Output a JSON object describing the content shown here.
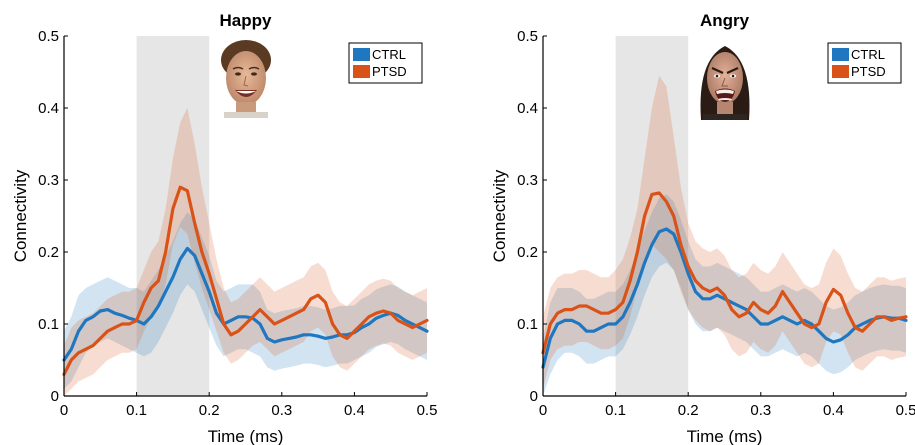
{
  "chart_data": [
    {
      "type": "line",
      "title": "Happy",
      "xlabel": "Time (ms)",
      "ylabel": "Connectivity",
      "xlim": [
        0,
        0.5
      ],
      "ylim": [
        0,
        0.5
      ],
      "xticks": [
        0,
        0.1,
        0.2,
        0.3,
        0.4,
        0.5
      ],
      "xtick_labels": [
        "0",
        "0.1",
        "0.2",
        "0.3",
        "0.4",
        "0.5"
      ],
      "yticks": [
        0,
        0.1,
        0.2,
        0.3,
        0.4,
        0.5
      ],
      "ytick_labels": [
        "0",
        "0.1",
        "0.2",
        "0.3",
        "0.4",
        "0.5"
      ],
      "highlight_window": [
        0.1,
        0.2
      ],
      "grid": false,
      "legend_placement": "top-right",
      "face_image": "happy-face",
      "series": [
        {
          "name": "CTRL",
          "color": "#1f77c0",
          "x": [
            0,
            0.01,
            0.02,
            0.03,
            0.04,
            0.05,
            0.06,
            0.07,
            0.08,
            0.09,
            0.1,
            0.11,
            0.12,
            0.13,
            0.14,
            0.15,
            0.16,
            0.17,
            0.18,
            0.19,
            0.2,
            0.21,
            0.22,
            0.23,
            0.24,
            0.25,
            0.26,
            0.27,
            0.28,
            0.29,
            0.3,
            0.31,
            0.32,
            0.33,
            0.34,
            0.35,
            0.36,
            0.37,
            0.38,
            0.39,
            0.4,
            0.41,
            0.42,
            0.43,
            0.44,
            0.45,
            0.46,
            0.47,
            0.48,
            0.49,
            0.5
          ],
          "y": [
            0.05,
            0.065,
            0.09,
            0.105,
            0.11,
            0.118,
            0.12,
            0.115,
            0.112,
            0.108,
            0.105,
            0.1,
            0.11,
            0.125,
            0.145,
            0.165,
            0.19,
            0.205,
            0.195,
            0.17,
            0.145,
            0.115,
            0.1,
            0.105,
            0.11,
            0.11,
            0.108,
            0.1,
            0.08,
            0.075,
            0.078,
            0.08,
            0.082,
            0.085,
            0.085,
            0.083,
            0.08,
            0.082,
            0.085,
            0.085,
            0.088,
            0.095,
            0.1,
            0.108,
            0.112,
            0.115,
            0.112,
            0.105,
            0.1,
            0.095,
            0.09
          ],
          "lower": [
            0.01,
            0.02,
            0.04,
            0.06,
            0.07,
            0.075,
            0.08,
            0.075,
            0.07,
            0.065,
            0.06,
            0.055,
            0.06,
            0.075,
            0.095,
            0.115,
            0.14,
            0.155,
            0.145,
            0.12,
            0.095,
            0.07,
            0.055,
            0.06,
            0.065,
            0.065,
            0.06,
            0.055,
            0.04,
            0.035,
            0.038,
            0.04,
            0.042,
            0.045,
            0.045,
            0.043,
            0.04,
            0.042,
            0.045,
            0.045,
            0.05,
            0.055,
            0.06,
            0.068,
            0.072,
            0.075,
            0.072,
            0.065,
            0.06,
            0.055,
            0.05
          ],
          "upper": [
            0.09,
            0.11,
            0.14,
            0.15,
            0.155,
            0.16,
            0.165,
            0.16,
            0.155,
            0.15,
            0.15,
            0.145,
            0.16,
            0.175,
            0.195,
            0.215,
            0.24,
            0.255,
            0.245,
            0.22,
            0.195,
            0.16,
            0.145,
            0.15,
            0.155,
            0.155,
            0.155,
            0.145,
            0.12,
            0.115,
            0.118,
            0.12,
            0.122,
            0.125,
            0.125,
            0.123,
            0.12,
            0.122,
            0.125,
            0.125,
            0.126,
            0.135,
            0.14,
            0.148,
            0.152,
            0.155,
            0.152,
            0.145,
            0.14,
            0.135,
            0.13
          ]
        },
        {
          "name": "PTSD",
          "color": "#d95319",
          "x": [
            0,
            0.01,
            0.02,
            0.03,
            0.04,
            0.05,
            0.06,
            0.07,
            0.08,
            0.09,
            0.1,
            0.11,
            0.12,
            0.13,
            0.14,
            0.15,
            0.16,
            0.17,
            0.18,
            0.19,
            0.2,
            0.21,
            0.22,
            0.23,
            0.24,
            0.25,
            0.26,
            0.27,
            0.28,
            0.29,
            0.3,
            0.31,
            0.32,
            0.33,
            0.34,
            0.35,
            0.36,
            0.37,
            0.38,
            0.39,
            0.4,
            0.41,
            0.42,
            0.43,
            0.44,
            0.45,
            0.46,
            0.47,
            0.48,
            0.49,
            0.5
          ],
          "y": [
            0.03,
            0.05,
            0.06,
            0.065,
            0.07,
            0.08,
            0.09,
            0.095,
            0.1,
            0.1,
            0.105,
            0.13,
            0.15,
            0.16,
            0.2,
            0.26,
            0.29,
            0.285,
            0.24,
            0.2,
            0.17,
            0.135,
            0.1,
            0.085,
            0.09,
            0.1,
            0.11,
            0.12,
            0.11,
            0.1,
            0.105,
            0.11,
            0.115,
            0.12,
            0.135,
            0.14,
            0.13,
            0.1,
            0.085,
            0.08,
            0.09,
            0.1,
            0.11,
            0.115,
            0.118,
            0.115,
            0.105,
            0.1,
            0.095,
            0.1,
            0.105
          ],
          "lower": [
            0.0,
            0.01,
            0.02,
            0.025,
            0.03,
            0.04,
            0.05,
            0.055,
            0.06,
            0.06,
            0.065,
            0.09,
            0.11,
            0.12,
            0.155,
            0.21,
            0.235,
            0.225,
            0.185,
            0.15,
            0.12,
            0.09,
            0.06,
            0.045,
            0.05,
            0.06,
            0.07,
            0.075,
            0.065,
            0.055,
            0.06,
            0.065,
            0.07,
            0.075,
            0.09,
            0.095,
            0.085,
            0.055,
            0.04,
            0.035,
            0.045,
            0.055,
            0.065,
            0.07,
            0.073,
            0.07,
            0.06,
            0.055,
            0.05,
            0.055,
            0.06
          ],
          "upper": [
            0.07,
            0.095,
            0.105,
            0.11,
            0.115,
            0.125,
            0.135,
            0.14,
            0.145,
            0.145,
            0.15,
            0.175,
            0.2,
            0.215,
            0.26,
            0.33,
            0.38,
            0.4,
            0.35,
            0.29,
            0.24,
            0.19,
            0.15,
            0.13,
            0.135,
            0.145,
            0.155,
            0.165,
            0.155,
            0.145,
            0.15,
            0.155,
            0.16,
            0.165,
            0.18,
            0.185,
            0.175,
            0.145,
            0.13,
            0.125,
            0.135,
            0.145,
            0.155,
            0.16,
            0.163,
            0.16,
            0.15,
            0.145,
            0.14,
            0.145,
            0.15
          ]
        }
      ]
    },
    {
      "type": "line",
      "title": "Angry",
      "xlabel": "Time (ms)",
      "ylabel": "Connectivity",
      "xlim": [
        0,
        0.5
      ],
      "ylim": [
        0,
        0.5
      ],
      "xticks": [
        0,
        0.1,
        0.2,
        0.3,
        0.4,
        0.5
      ],
      "xtick_labels": [
        "0",
        "0.1",
        "0.2",
        "0.3",
        "0.4",
        "0.5"
      ],
      "yticks": [
        0,
        0.1,
        0.2,
        0.3,
        0.4,
        0.5
      ],
      "ytick_labels": [
        "0",
        "0.1",
        "0.2",
        "0.3",
        "0.4",
        "0.5"
      ],
      "highlight_window": [
        0.1,
        0.2
      ],
      "grid": false,
      "legend_placement": "top-right",
      "face_image": "angry-face",
      "series": [
        {
          "name": "CTRL",
          "color": "#1f77c0",
          "x": [
            0,
            0.01,
            0.02,
            0.03,
            0.04,
            0.05,
            0.06,
            0.07,
            0.08,
            0.09,
            0.1,
            0.11,
            0.12,
            0.13,
            0.14,
            0.15,
            0.16,
            0.17,
            0.18,
            0.19,
            0.2,
            0.21,
            0.22,
            0.23,
            0.24,
            0.25,
            0.26,
            0.27,
            0.28,
            0.29,
            0.3,
            0.31,
            0.32,
            0.33,
            0.34,
            0.35,
            0.36,
            0.37,
            0.38,
            0.39,
            0.4,
            0.41,
            0.42,
            0.43,
            0.44,
            0.45,
            0.46,
            0.47,
            0.48,
            0.49,
            0.5
          ],
          "y": [
            0.04,
            0.08,
            0.1,
            0.105,
            0.105,
            0.1,
            0.09,
            0.09,
            0.095,
            0.1,
            0.1,
            0.11,
            0.13,
            0.155,
            0.185,
            0.21,
            0.228,
            0.232,
            0.225,
            0.2,
            0.17,
            0.145,
            0.135,
            0.135,
            0.14,
            0.135,
            0.13,
            0.125,
            0.12,
            0.11,
            0.1,
            0.1,
            0.105,
            0.11,
            0.105,
            0.1,
            0.105,
            0.1,
            0.09,
            0.08,
            0.075,
            0.078,
            0.085,
            0.095,
            0.1,
            0.105,
            0.108,
            0.11,
            0.108,
            0.108,
            0.105
          ],
          "lower": [
            0.0,
            0.03,
            0.05,
            0.06,
            0.06,
            0.055,
            0.045,
            0.045,
            0.05,
            0.055,
            0.055,
            0.065,
            0.085,
            0.11,
            0.14,
            0.165,
            0.18,
            0.185,
            0.175,
            0.15,
            0.12,
            0.1,
            0.09,
            0.09,
            0.095,
            0.09,
            0.085,
            0.08,
            0.075,
            0.065,
            0.055,
            0.055,
            0.06,
            0.065,
            0.06,
            0.055,
            0.06,
            0.055,
            0.045,
            0.035,
            0.03,
            0.033,
            0.04,
            0.05,
            0.055,
            0.06,
            0.063,
            0.065,
            0.063,
            0.063,
            0.06
          ],
          "upper": [
            0.08,
            0.13,
            0.15,
            0.15,
            0.15,
            0.145,
            0.135,
            0.135,
            0.14,
            0.145,
            0.145,
            0.155,
            0.175,
            0.2,
            0.23,
            0.255,
            0.275,
            0.28,
            0.27,
            0.245,
            0.215,
            0.19,
            0.18,
            0.18,
            0.185,
            0.18,
            0.175,
            0.17,
            0.165,
            0.155,
            0.145,
            0.145,
            0.15,
            0.155,
            0.15,
            0.145,
            0.15,
            0.145,
            0.135,
            0.125,
            0.12,
            0.123,
            0.13,
            0.14,
            0.145,
            0.15,
            0.153,
            0.155,
            0.153,
            0.153,
            0.15
          ]
        },
        {
          "name": "PTSD",
          "color": "#d95319",
          "x": [
            0,
            0.01,
            0.02,
            0.03,
            0.04,
            0.05,
            0.06,
            0.07,
            0.08,
            0.09,
            0.1,
            0.11,
            0.12,
            0.13,
            0.14,
            0.15,
            0.16,
            0.17,
            0.18,
            0.19,
            0.2,
            0.21,
            0.22,
            0.23,
            0.24,
            0.25,
            0.26,
            0.27,
            0.28,
            0.29,
            0.3,
            0.31,
            0.32,
            0.33,
            0.34,
            0.35,
            0.36,
            0.37,
            0.38,
            0.39,
            0.4,
            0.41,
            0.42,
            0.43,
            0.44,
            0.45,
            0.46,
            0.47,
            0.48,
            0.49,
            0.5
          ],
          "y": [
            0.06,
            0.1,
            0.115,
            0.12,
            0.12,
            0.125,
            0.125,
            0.12,
            0.115,
            0.115,
            0.12,
            0.13,
            0.16,
            0.2,
            0.25,
            0.28,
            0.282,
            0.27,
            0.25,
            0.21,
            0.18,
            0.16,
            0.15,
            0.145,
            0.15,
            0.14,
            0.12,
            0.11,
            0.115,
            0.13,
            0.12,
            0.115,
            0.125,
            0.145,
            0.13,
            0.115,
            0.1,
            0.095,
            0.1,
            0.13,
            0.148,
            0.14,
            0.115,
            0.095,
            0.09,
            0.1,
            0.11,
            0.11,
            0.105,
            0.108,
            0.11
          ],
          "lower": [
            0.01,
            0.05,
            0.065,
            0.07,
            0.07,
            0.075,
            0.075,
            0.07,
            0.065,
            0.065,
            0.07,
            0.08,
            0.11,
            0.15,
            0.19,
            0.21,
            0.2,
            0.19,
            0.175,
            0.145,
            0.12,
            0.105,
            0.095,
            0.09,
            0.095,
            0.085,
            0.065,
            0.055,
            0.06,
            0.075,
            0.065,
            0.06,
            0.07,
            0.09,
            0.075,
            0.06,
            0.045,
            0.04,
            0.045,
            0.075,
            0.09,
            0.085,
            0.06,
            0.04,
            0.035,
            0.045,
            0.055,
            0.055,
            0.05,
            0.053,
            0.055
          ],
          "upper": [
            0.11,
            0.15,
            0.165,
            0.17,
            0.17,
            0.175,
            0.175,
            0.17,
            0.165,
            0.165,
            0.175,
            0.19,
            0.22,
            0.26,
            0.33,
            0.4,
            0.445,
            0.43,
            0.36,
            0.29,
            0.24,
            0.215,
            0.205,
            0.2,
            0.205,
            0.195,
            0.175,
            0.165,
            0.17,
            0.185,
            0.175,
            0.17,
            0.18,
            0.2,
            0.185,
            0.17,
            0.155,
            0.15,
            0.155,
            0.185,
            0.205,
            0.195,
            0.17,
            0.15,
            0.145,
            0.155,
            0.165,
            0.165,
            0.16,
            0.163,
            0.165
          ]
        }
      ]
    }
  ]
}
